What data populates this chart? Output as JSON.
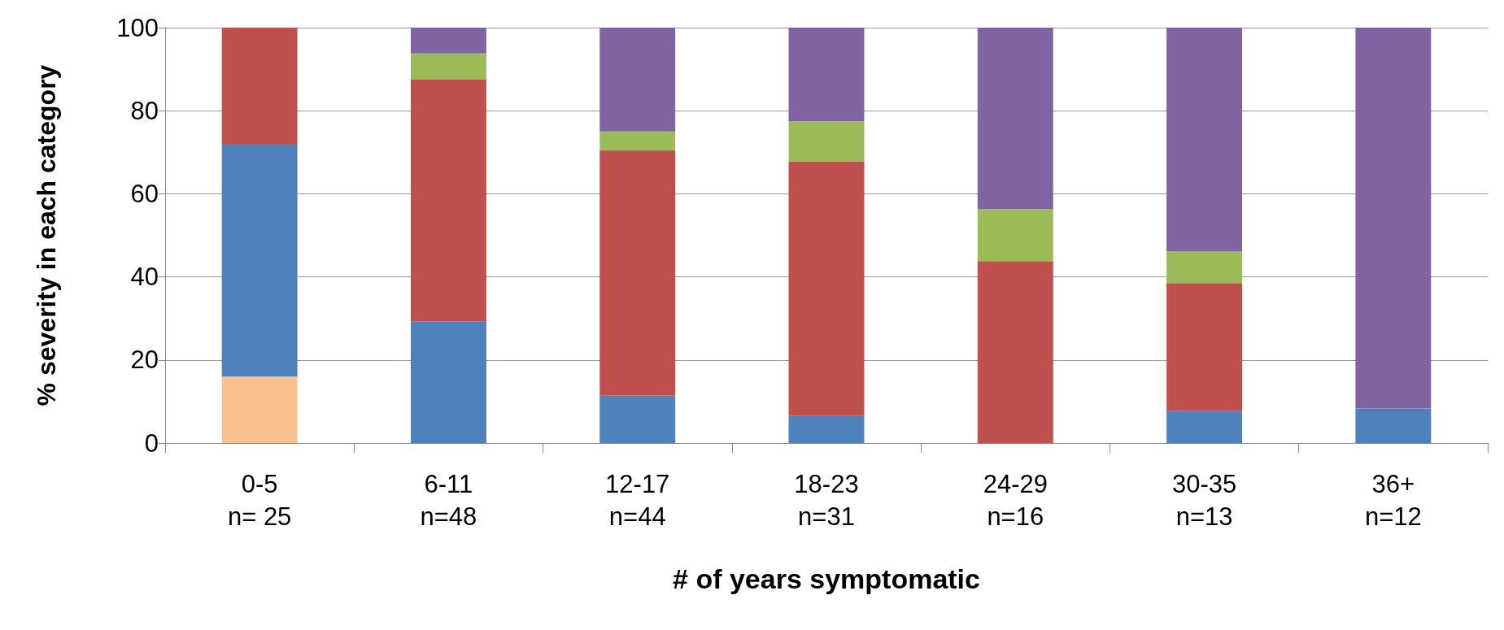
{
  "chart_data": {
    "type": "bar",
    "stacked": true,
    "xlabel": "# of years symptomatic",
    "ylabel": "% severity in each category",
    "categories": [
      "0-5\nn= 25",
      "6-11\nn=48",
      "12-17\nn=44",
      "18-23\nn=31",
      "24-29\nn=16",
      "30-35\nn=13",
      "36+\nn=12"
    ],
    "series": [
      {
        "color": "#f9c090",
        "values": [
          16,
          null,
          null,
          null,
          null,
          null,
          null
        ]
      },
      {
        "color": "#4f81bd",
        "values": [
          56,
          29.2,
          11.4,
          6.5,
          null,
          7.7,
          8.3
        ]
      },
      {
        "color": "#c0504d",
        "values": [
          28,
          58.3,
          59.1,
          61.3,
          43.8,
          30.8,
          null
        ]
      },
      {
        "color": "#9bbb59",
        "values": [
          null,
          6.3,
          4.5,
          9.7,
          12.5,
          7.7,
          null
        ]
      },
      {
        "color": "#8064a2",
        "values": [
          null,
          6.2,
          25,
          22.5,
          43.7,
          53.8,
          91.7
        ]
      }
    ],
    "ylim": [
      0,
      100
    ],
    "yticks": [
      0,
      20,
      40,
      60,
      80,
      100
    ],
    "grid": "y"
  }
}
